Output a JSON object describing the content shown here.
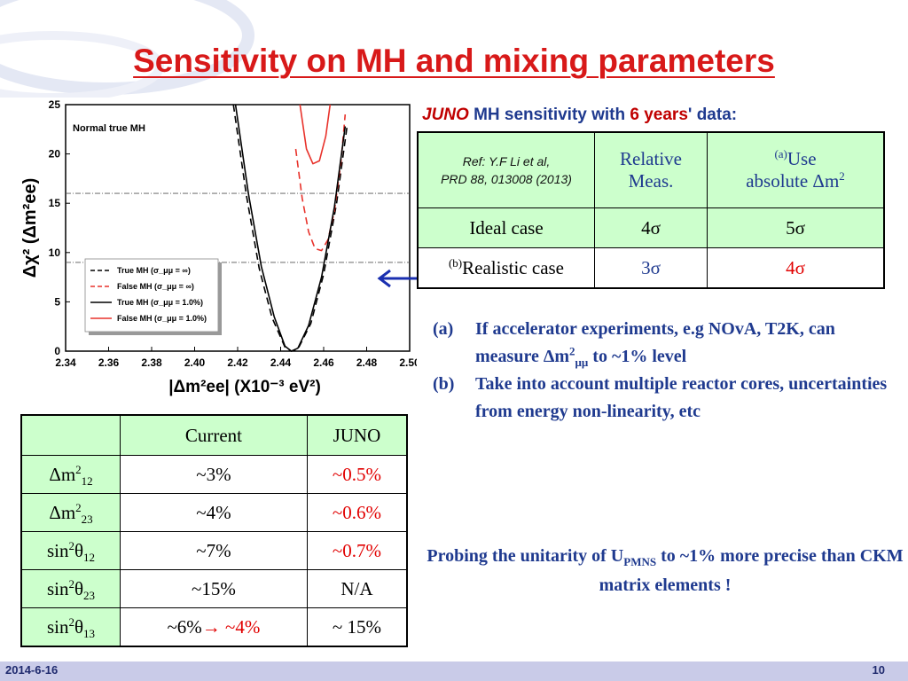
{
  "slide": {
    "title": "Sensitivity on MH and mixing parameters",
    "date": "2014-6-16",
    "page": "10"
  },
  "juno_heading": {
    "juno": "JUNO",
    "part1": " MH sensitivity with ",
    "years": "6 years",
    "part2": "' data:"
  },
  "sensitivity_table": {
    "ref_line1": "Ref:  Y.F Li et al,",
    "ref_line2": "PRD 88, 013008 (2013)",
    "col_relative": "Relative Meas.",
    "col_absolute_tag": "(a)",
    "col_absolute_1": "Use",
    "col_absolute_2": "absolute Δm",
    "col_absolute_sup": "2",
    "ideal_label": "Ideal case",
    "ideal_rel": "4σ",
    "ideal_abs": "5σ",
    "real_tag": "(b)",
    "real_label": "Realistic case",
    "real_rel": "3σ",
    "real_abs": "4σ"
  },
  "notes": [
    {
      "label": "(a)",
      "text_1": "If accelerator experiments, e.g NOvA, T2K, can measure Δm",
      "sup": "2",
      "sub": "μμ",
      "text_2": " to ~1% level"
    },
    {
      "label": "(b)",
      "text_1": "Take into account multiple reactor cores, uncertainties from energy non-linearity, etc"
    }
  ],
  "probing": {
    "text_1": "Probing the unitarity of U",
    "sub": "PMNS",
    "text_2": " to ~1% more precise than CKM matrix elements !"
  },
  "params_table": {
    "headers": [
      "",
      "Current",
      "JUNO"
    ],
    "rows": [
      {
        "name": "Δm",
        "sup": "2",
        "sub": "12",
        "current": "~3%",
        "juno": "~0.5%"
      },
      {
        "name": "Δm",
        "sup": "2",
        "sub": "23",
        "current": "~4%",
        "juno": "~0.6%"
      },
      {
        "name": "sin",
        "sup": "2",
        "theta": "θ",
        "sub": "12",
        "current": "~7%",
        "juno": "~0.7%"
      },
      {
        "name": "sin",
        "sup": "2",
        "theta": "θ",
        "sub": "23",
        "current": "~15%",
        "juno": "N/A"
      },
      {
        "name": "sin",
        "sup": "2",
        "theta": "θ",
        "sub": "13",
        "current": "~6%",
        "current_arrow": "→",
        "current_new": " ~4%",
        "juno": "~ 15%"
      }
    ]
  },
  "colors": {
    "title_red": "#d81919",
    "text_blue": "#1f3a8f",
    "value_red": "#e10000",
    "cell_green": "#ccffcc",
    "footer_band": "#c9cbe8"
  },
  "chart_data": {
    "type": "line",
    "inner_label": "Normal true MH",
    "xlabel": "|Δm²ee| (X10⁻³ eV²)",
    "ylabel": "Δχ² (Δm²ee)",
    "xlim": [
      2.34,
      2.5
    ],
    "ylim": [
      0,
      25
    ],
    "x_ticks": [
      "2.34",
      "2.36",
      "2.38",
      "2.40",
      "2.42",
      "2.44",
      "2.46",
      "2.48",
      "2.50"
    ],
    "y_ticks": [
      "0",
      "5",
      "10",
      "15",
      "20",
      "25"
    ],
    "reference_lines": [
      9,
      16
    ],
    "legend": {
      "position": "bottom-left",
      "entries": [
        "True MH (σ_μμ = ∞)",
        "False MH (σ_μμ = ∞)",
        "True MH (σ_μμ = 1.0%)",
        "False MH (σ_μμ = 1.0%)"
      ]
    },
    "series": [
      {
        "name": "True MH (σ_μμ = ∞)",
        "color": "#000000",
        "dash": "dashed",
        "x": [
          2.418,
          2.424,
          2.43,
          2.436,
          2.442,
          2.445,
          2.448,
          2.454,
          2.46,
          2.466,
          2.471
        ],
        "y": [
          25,
          15.9,
          8.4,
          3.4,
          0.4,
          0,
          0.2,
          2.8,
          7.8,
          15.0,
          23.0
        ]
      },
      {
        "name": "False MH (σ_μμ = ∞)",
        "color": "#e8322b",
        "dash": "dashed",
        "x": [
          2.447,
          2.45,
          2.453,
          2.456,
          2.459,
          2.462,
          2.465,
          2.468,
          2.47
        ],
        "y": [
          20.5,
          15.5,
          12.1,
          10.4,
          10.2,
          11.3,
          14.2,
          19.1,
          24.0
        ]
      },
      {
        "name": "True MH (σ_μμ = 1.0%)",
        "color": "#000000",
        "dash": "solid",
        "x": [
          2.419,
          2.425,
          2.431,
          2.437,
          2.442,
          2.445,
          2.448,
          2.453,
          2.459,
          2.465,
          2.47
        ],
        "y": [
          25,
          16.0,
          8.6,
          3.5,
          0.5,
          0,
          0.3,
          2.6,
          7.5,
          14.6,
          22.8
        ]
      },
      {
        "name": "False MH (σ_μμ = 1.0%)",
        "color": "#e8322b",
        "dash": "solid",
        "x": [
          2.449,
          2.452,
          2.455,
          2.458,
          2.461,
          2.463
        ],
        "y": [
          25,
          20.5,
          19.0,
          19.3,
          21.8,
          25
        ]
      }
    ]
  }
}
